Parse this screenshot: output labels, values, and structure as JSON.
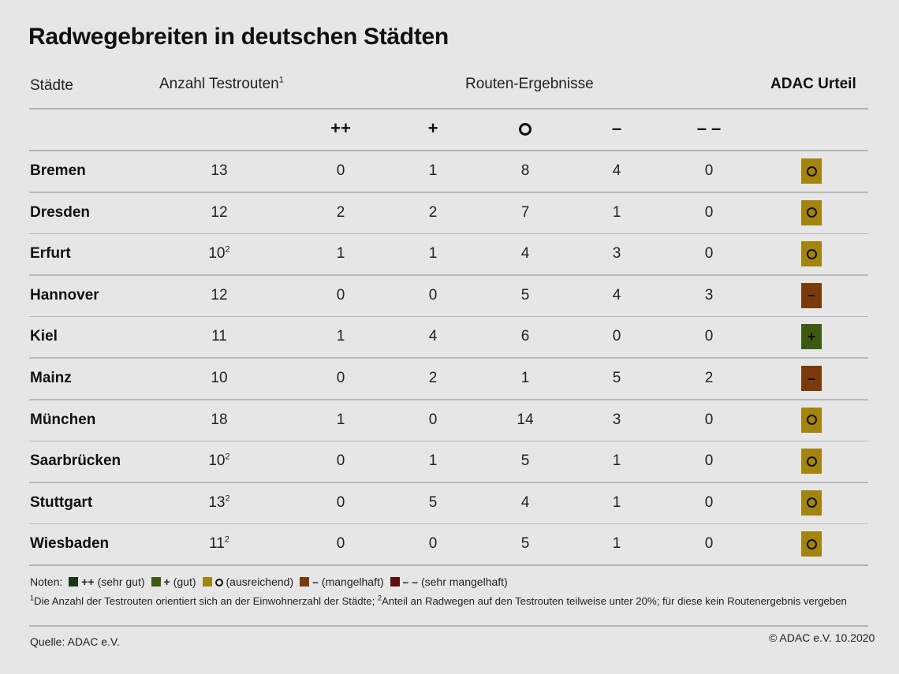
{
  "title": "Radwegebreiten in deutschen Städten",
  "headers": {
    "cities": "Städte",
    "routes": "Anzahl Testrouten",
    "routes_sup": "1",
    "results": "Routen-Ergebnisse",
    "verdict": "ADAC Urteil"
  },
  "grade_symbols": {
    "very_good": "++",
    "good": "+",
    "sufficient": "o",
    "poor": "–",
    "very_poor": "– –"
  },
  "colors": {
    "very_good": "#17361a",
    "good": "#3e5a12",
    "sufficient": "#a3840f",
    "poor": "#7a3a0c",
    "very_poor": "#5e1010"
  },
  "rows": [
    {
      "city": "Bremen",
      "routes": "13",
      "sup": "",
      "vg": "0",
      "g": "1",
      "s": "8",
      "p": "4",
      "vp": "0",
      "verdict": "sufficient"
    },
    {
      "city": "Dresden",
      "routes": "12",
      "sup": "",
      "vg": "2",
      "g": "2",
      "s": "7",
      "p": "1",
      "vp": "0",
      "verdict": "sufficient"
    },
    {
      "city": "Erfurt",
      "routes": "10",
      "sup": "2",
      "vg": "1",
      "g": "1",
      "s": "4",
      "p": "3",
      "vp": "0",
      "verdict": "sufficient"
    },
    {
      "city": "Hannover",
      "routes": "12",
      "sup": "",
      "vg": "0",
      "g": "0",
      "s": "5",
      "p": "4",
      "vp": "3",
      "verdict": "poor"
    },
    {
      "city": "Kiel",
      "routes": "11",
      "sup": "",
      "vg": "1",
      "g": "4",
      "s": "6",
      "p": "0",
      "vp": "0",
      "verdict": "good"
    },
    {
      "city": "Mainz",
      "routes": "10",
      "sup": "",
      "vg": "0",
      "g": "2",
      "s": "1",
      "p": "5",
      "vp": "2",
      "verdict": "poor"
    },
    {
      "city": "München",
      "routes": "18",
      "sup": "",
      "vg": "1",
      "g": "0",
      "s": "14",
      "p": "3",
      "vp": "0",
      "verdict": "sufficient"
    },
    {
      "city": "Saarbrücken",
      "routes": "10",
      "sup": "2",
      "vg": "0",
      "g": "1",
      "s": "5",
      "p": "1",
      "vp": "0",
      "verdict": "sufficient"
    },
    {
      "city": "Stuttgart",
      "routes": "13",
      "sup": "2",
      "vg": "0",
      "g": "5",
      "s": "4",
      "p": "1",
      "vp": "0",
      "verdict": "sufficient"
    },
    {
      "city": "Wiesbaden",
      "routes": "11",
      "sup": "2",
      "vg": "0",
      "g": "0",
      "s": "5",
      "p": "1",
      "vp": "0",
      "verdict": "sufficient"
    }
  ],
  "legend": {
    "prefix": "Noten:",
    "items": [
      {
        "key": "very_good",
        "mark": "++",
        "label": "(sehr gut)"
      },
      {
        "key": "good",
        "mark": "+",
        "label": "(gut)"
      },
      {
        "key": "sufficient",
        "mark": "o",
        "label": "(ausreichend)"
      },
      {
        "key": "poor",
        "mark": "–",
        "label": "(mangelhaft)"
      },
      {
        "key": "very_poor",
        "mark": "– –",
        "label": "(sehr mangelhaft)"
      }
    ]
  },
  "footnote": {
    "sup1": "1",
    "text1": "Die Anzahl der Testrouten orientiert sich an der Einwohnerzahl der Städte; ",
    "sup2": "2",
    "text2": "Anteil an Radwegen auf den Testrouten teilweise unter 20%; für diese kein Routenergebnis vergeben"
  },
  "source": "Quelle: ADAC e.V.",
  "copyright": "© ADAC e.V. 10.2020"
}
